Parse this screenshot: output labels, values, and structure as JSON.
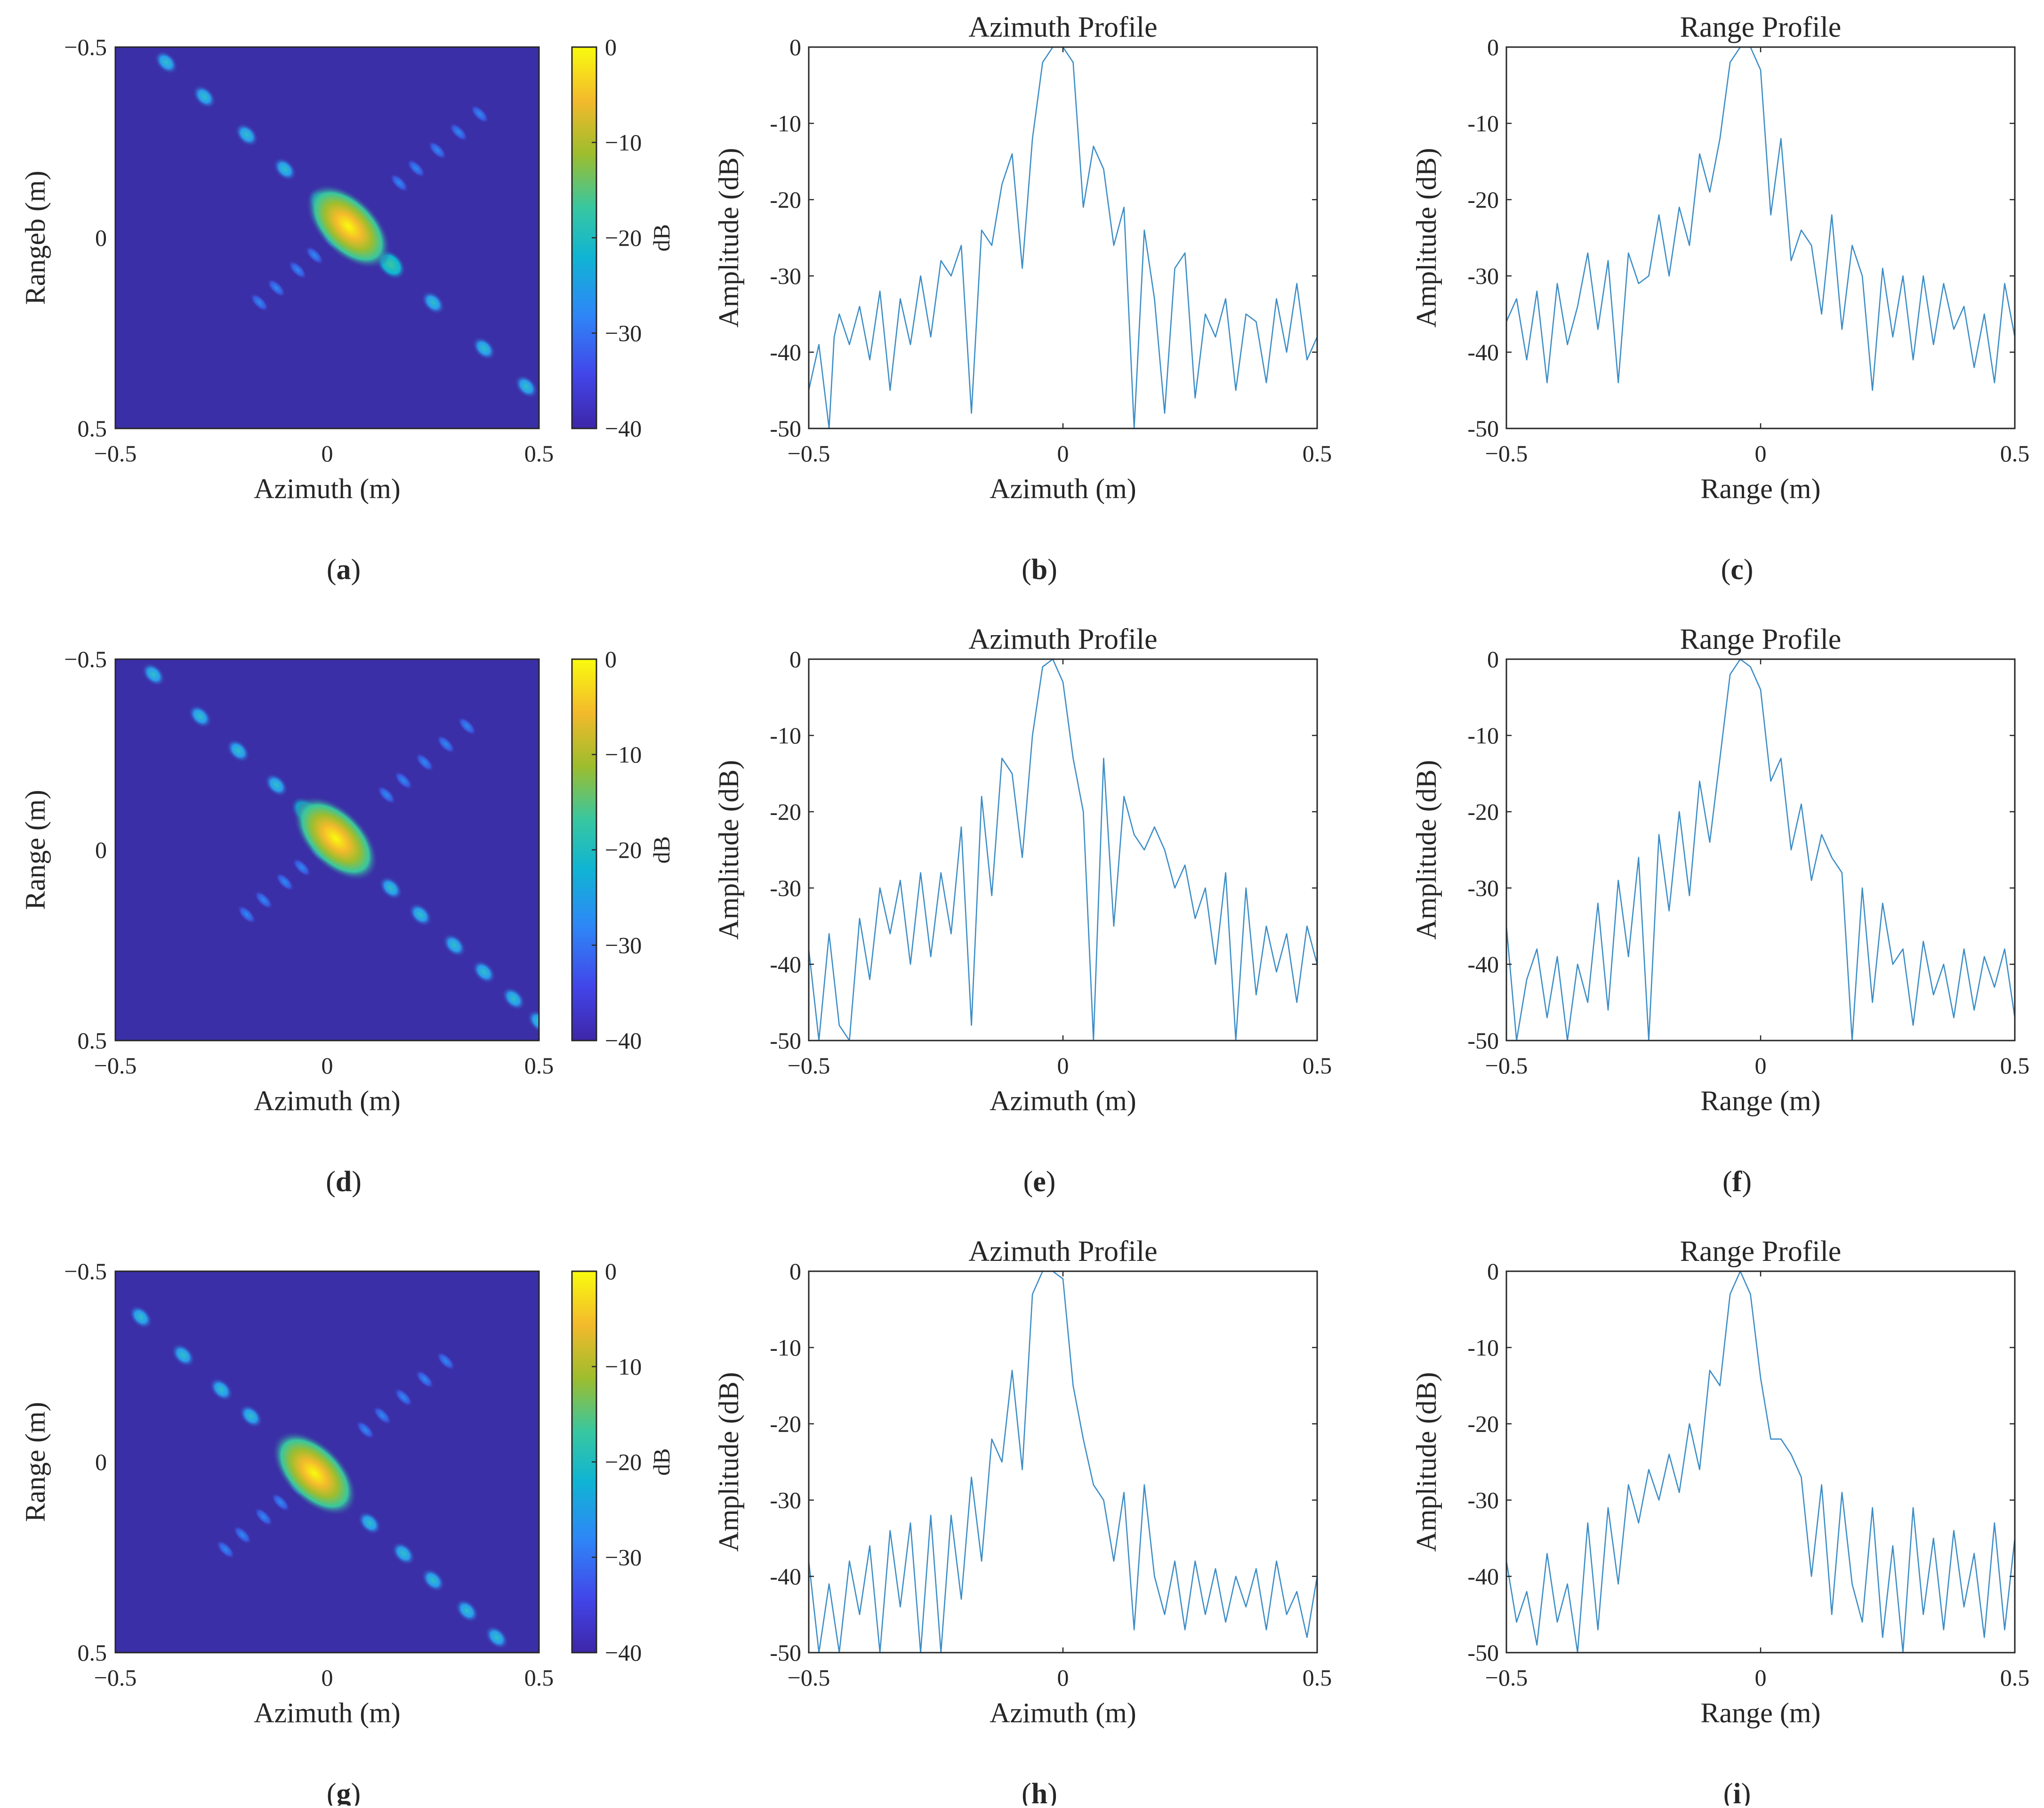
{
  "colors": {
    "line": "#3c8dc6",
    "image_background": "#3a2fa6",
    "colormap": [
      "#3e26a8",
      "#4245e9",
      "#2e87f7",
      "#10b4d3",
      "#38c7a0",
      "#9ebd2d",
      "#f3ba2c",
      "#f9fb0e"
    ]
  },
  "chart_data": [
    {
      "panel": "a",
      "caption": "a",
      "type": "heatmap",
      "xlabel": "Azimuth (m)",
      "ylabel": "Rangeb (m)",
      "xlim": [
        -0.5,
        0.5
      ],
      "ylim": [
        -0.5,
        0.5
      ],
      "y_reversed": true,
      "xticks": [
        "−0.5",
        "0",
        "0.5"
      ],
      "yticks": [
        "−0.5",
        "0",
        "0.5"
      ],
      "colorbar": {
        "label": "dB",
        "range": [
          -40,
          0
        ],
        "ticks": [
          "0",
          "−10",
          "−20",
          "−30",
          "−40"
        ]
      },
      "peak": {
        "x": 0.05,
        "y": -0.03
      },
      "diagonal_sidelobes_at": [
        -0.43,
        -0.34,
        -0.24,
        -0.15,
        -0.06,
        0.1,
        0.2,
        0.32,
        0.42,
        0.49
      ],
      "cross_sidelobes_at": [
        -0.21,
        -0.17,
        -0.12,
        -0.08,
        -0.04,
        0.12,
        0.16,
        0.21,
        0.26,
        0.31
      ]
    },
    {
      "panel": "b",
      "caption": "b",
      "type": "line",
      "title": "Azimuth Profile",
      "xlabel": "Azimuth (m)",
      "ylabel": "Amplitude (dB)",
      "xlim": [
        -0.5,
        0.5
      ],
      "ylim": [
        -50,
        0
      ],
      "xticks": [
        "−0.5",
        "0",
        "0.5"
      ],
      "yticks": [
        "0",
        "-10",
        "-20",
        "-30",
        "-40",
        "-50"
      ],
      "x": [
        -0.5,
        -0.48,
        -0.46,
        -0.45,
        -0.44,
        -0.42,
        -0.4,
        -0.38,
        -0.36,
        -0.34,
        -0.32,
        -0.3,
        -0.28,
        -0.26,
        -0.24,
        -0.22,
        -0.2,
        -0.18,
        -0.16,
        -0.14,
        -0.12,
        -0.1,
        -0.08,
        -0.06,
        -0.04,
        -0.02,
        0,
        0.02,
        0.04,
        0.06,
        0.08,
        0.1,
        0.12,
        0.14,
        0.16,
        0.18,
        0.2,
        0.22,
        0.24,
        0.26,
        0.28,
        0.3,
        0.32,
        0.34,
        0.36,
        0.38,
        0.4,
        0.42,
        0.44,
        0.46,
        0.48,
        0.5
      ],
      "y": [
        -45,
        -39,
        -50,
        -38,
        -35,
        -39,
        -34,
        -41,
        -32,
        -45,
        -33,
        -39,
        -30,
        -38,
        -28,
        -30,
        -26,
        -48,
        -24,
        -26,
        -18,
        -14,
        -29,
        -12,
        -2,
        0,
        0,
        -2,
        -21,
        -13,
        -16,
        -26,
        -21,
        -50,
        -24,
        -33,
        -48,
        -29,
        -27,
        -46,
        -35,
        -38,
        -33,
        -45,
        -35,
        -36,
        -44,
        -33,
        -40,
        -31,
        -41,
        -38
      ]
    },
    {
      "panel": "c",
      "caption": "c",
      "type": "line",
      "title": "Range Profile",
      "xlabel": "Range (m)",
      "ylabel": "Amplitude (dB)",
      "xlim": [
        -0.5,
        0.5
      ],
      "ylim": [
        -50,
        0
      ],
      "xticks": [
        "−0.5",
        "0",
        "0.5"
      ],
      "yticks": [
        "0",
        "-10",
        "-20",
        "-30",
        "-40",
        "-50"
      ],
      "x": [
        -0.5,
        -0.48,
        -0.46,
        -0.44,
        -0.42,
        -0.4,
        -0.38,
        -0.36,
        -0.34,
        -0.32,
        -0.3,
        -0.28,
        -0.26,
        -0.24,
        -0.22,
        -0.2,
        -0.18,
        -0.16,
        -0.14,
        -0.12,
        -0.1,
        -0.08,
        -0.06,
        -0.04,
        -0.02,
        0,
        0.02,
        0.04,
        0.06,
        0.08,
        0.1,
        0.12,
        0.14,
        0.16,
        0.18,
        0.2,
        0.22,
        0.24,
        0.26,
        0.28,
        0.3,
        0.32,
        0.34,
        0.36,
        0.38,
        0.4,
        0.42,
        0.44,
        0.46,
        0.48,
        0.5
      ],
      "y": [
        -36,
        -33,
        -41,
        -32,
        -44,
        -31,
        -39,
        -34,
        -27,
        -37,
        -28,
        -44,
        -27,
        -31,
        -30,
        -22,
        -30,
        -21,
        -26,
        -14,
        -19,
        -12,
        -2,
        0,
        0,
        -3,
        -22,
        -12,
        -28,
        -24,
        -26,
        -35,
        -22,
        -37,
        -26,
        -30,
        -45,
        -29,
        -38,
        -30,
        -41,
        -30,
        -39,
        -31,
        -37,
        -34,
        -42,
        -35,
        -44,
        -31,
        -38
      ]
    },
    {
      "panel": "d",
      "caption": "d",
      "type": "heatmap",
      "xlabel": "Azimuth (m)",
      "ylabel": "Range (m)",
      "xlim": [
        -0.5,
        0.5
      ],
      "ylim": [
        -0.5,
        0.5
      ],
      "y_reversed": true,
      "xticks": [
        "−0.5",
        "0",
        "0.5"
      ],
      "yticks": [
        "−0.5",
        "0",
        "0.5"
      ],
      "colorbar": {
        "label": "dB",
        "range": [
          -40,
          0
        ],
        "ticks": [
          "0",
          "−10",
          "−20",
          "−30",
          "−40"
        ]
      },
      "peak": {
        "x": 0.02,
        "y": -0.03
      },
      "diagonal_sidelobes_at": [
        -0.43,
        -0.32,
        -0.23,
        -0.14,
        -0.07,
        0.13,
        0.2,
        0.28,
        0.35,
        0.42,
        0.48
      ],
      "cross_sidelobes_at": [
        -0.21,
        -0.17,
        -0.12,
        -0.08,
        -0.04,
        0.12,
        0.16,
        0.21,
        0.26,
        0.31
      ]
    },
    {
      "panel": "e",
      "caption": "e",
      "type": "line",
      "title": "Azimuth Profile",
      "xlabel": "Azimuth (m)",
      "ylabel": "Amplitude (dB)",
      "xlim": [
        -0.5,
        0.5
      ],
      "ylim": [
        -50,
        0
      ],
      "xticks": [
        "−0.5",
        "0",
        "0.5"
      ],
      "yticks": [
        "0",
        "-10",
        "-20",
        "-30",
        "-40",
        "-50"
      ],
      "x": [
        -0.5,
        -0.48,
        -0.46,
        -0.44,
        -0.42,
        -0.4,
        -0.38,
        -0.36,
        -0.34,
        -0.32,
        -0.3,
        -0.28,
        -0.26,
        -0.24,
        -0.22,
        -0.2,
        -0.18,
        -0.16,
        -0.14,
        -0.12,
        -0.1,
        -0.08,
        -0.06,
        -0.04,
        -0.02,
        0,
        0.02,
        0.04,
        0.06,
        0.08,
        0.1,
        0.12,
        0.14,
        0.16,
        0.18,
        0.2,
        0.22,
        0.24,
        0.26,
        0.28,
        0.3,
        0.32,
        0.34,
        0.36,
        0.38,
        0.4,
        0.42,
        0.44,
        0.46,
        0.48,
        0.5
      ],
      "y": [
        -38,
        -50,
        -36,
        -48,
        -50,
        -34,
        -42,
        -30,
        -36,
        -29,
        -40,
        -28,
        -39,
        -28,
        -36,
        -22,
        -48,
        -18,
        -31,
        -13,
        -15,
        -26,
        -10,
        -1,
        0,
        -3,
        -13,
        -20,
        -50,
        -13,
        -35,
        -18,
        -23,
        -25,
        -22,
        -25,
        -30,
        -27,
        -34,
        -30,
        -40,
        -28,
        -50,
        -30,
        -44,
        -35,
        -41,
        -36,
        -45,
        -35,
        -40
      ]
    },
    {
      "panel": "f",
      "caption": "f",
      "type": "line",
      "title": "Range Profile",
      "xlabel": "Range (m)",
      "ylabel": "Amplitude (dB)",
      "xlim": [
        -0.5,
        0.5
      ],
      "ylim": [
        -50,
        0
      ],
      "xticks": [
        "−0.5",
        "0",
        "0.5"
      ],
      "yticks": [
        "0",
        "-10",
        "-20",
        "-30",
        "-40",
        "-50"
      ],
      "x": [
        -0.5,
        -0.48,
        -0.46,
        -0.44,
        -0.42,
        -0.4,
        -0.38,
        -0.36,
        -0.34,
        -0.32,
        -0.3,
        -0.28,
        -0.26,
        -0.24,
        -0.22,
        -0.2,
        -0.18,
        -0.16,
        -0.14,
        -0.12,
        -0.1,
        -0.08,
        -0.06,
        -0.04,
        -0.02,
        0,
        0.02,
        0.04,
        0.06,
        0.08,
        0.1,
        0.12,
        0.14,
        0.16,
        0.18,
        0.2,
        0.22,
        0.24,
        0.26,
        0.28,
        0.3,
        0.32,
        0.34,
        0.36,
        0.38,
        0.4,
        0.42,
        0.44,
        0.46,
        0.48,
        0.5
      ],
      "y": [
        -35,
        -50,
        -42,
        -38,
        -47,
        -39,
        -50,
        -40,
        -45,
        -32,
        -46,
        -29,
        -39,
        -26,
        -50,
        -23,
        -33,
        -20,
        -31,
        -16,
        -24,
        -13,
        -2,
        0,
        -1,
        -4,
        -16,
        -13,
        -25,
        -19,
        -29,
        -23,
        -26,
        -28,
        -50,
        -30,
        -45,
        -32,
        -40,
        -38,
        -48,
        -37,
        -44,
        -40,
        -47,
        -38,
        -46,
        -39,
        -43,
        -38,
        -47
      ]
    },
    {
      "panel": "g",
      "caption": "g",
      "type": "heatmap",
      "xlabel": "Azimuth (m)",
      "ylabel": "Range (m)",
      "xlim": [
        -0.5,
        0.5
      ],
      "ylim": [
        -0.5,
        0.5
      ],
      "y_reversed": true,
      "xticks": [
        "−0.5",
        "0",
        "0.5"
      ],
      "yticks": [
        "−0.5",
        "0",
        "0.5"
      ],
      "colorbar": {
        "label": "dB",
        "range": [
          -40,
          0
        ],
        "ticks": [
          "0",
          "−10",
          "−20",
          "−30",
          "−40"
        ]
      },
      "peak": {
        "x": -0.03,
        "y": 0.03
      },
      "diagonal_sidelobes_at": [
        -0.41,
        -0.31,
        -0.22,
        -0.15,
        0.13,
        0.21,
        0.28,
        0.36,
        0.43
      ],
      "cross_sidelobes_at": [
        -0.21,
        -0.17,
        -0.12,
        -0.08,
        -0.04,
        0.12,
        0.16,
        0.21,
        0.26,
        0.31
      ]
    },
    {
      "panel": "h",
      "caption": "h",
      "type": "line",
      "title": "Azimuth Profile",
      "xlabel": "Azimuth (m)",
      "ylabel": "Amplitude (dB)",
      "xlim": [
        -0.5,
        0.5
      ],
      "ylim": [
        -50,
        0
      ],
      "xticks": [
        "−0.5",
        "0",
        "0.5"
      ],
      "yticks": [
        "0",
        "-10",
        "-20",
        "-30",
        "-40",
        "-50"
      ],
      "x": [
        -0.5,
        -0.48,
        -0.46,
        -0.44,
        -0.42,
        -0.4,
        -0.38,
        -0.36,
        -0.34,
        -0.32,
        -0.3,
        -0.28,
        -0.26,
        -0.24,
        -0.22,
        -0.2,
        -0.18,
        -0.16,
        -0.14,
        -0.12,
        -0.1,
        -0.08,
        -0.06,
        -0.04,
        -0.02,
        0,
        0.02,
        0.04,
        0.06,
        0.08,
        0.1,
        0.12,
        0.14,
        0.16,
        0.18,
        0.2,
        0.22,
        0.24,
        0.26,
        0.28,
        0.3,
        0.32,
        0.34,
        0.36,
        0.38,
        0.4,
        0.42,
        0.44,
        0.46,
        0.48,
        0.5
      ],
      "y": [
        -38,
        -50,
        -41,
        -50,
        -38,
        -45,
        -36,
        -50,
        -34,
        -44,
        -33,
        -50,
        -32,
        -50,
        -32,
        -43,
        -27,
        -38,
        -22,
        -25,
        -13,
        -26,
        -3,
        0,
        0,
        -1,
        -15,
        -22,
        -28,
        -30,
        -38,
        -29,
        -47,
        -28,
        -40,
        -45,
        -38,
        -47,
        -38,
        -45,
        -39,
        -46,
        -40,
        -44,
        -39,
        -47,
        -38,
        -45,
        -42,
        -48,
        -40
      ]
    },
    {
      "panel": "i",
      "caption": "i",
      "type": "line",
      "title": "Range Profile",
      "xlabel": "Range (m)",
      "ylabel": "Amplitude (dB)",
      "xlim": [
        -0.5,
        0.5
      ],
      "ylim": [
        -50,
        0
      ],
      "xticks": [
        "−0.5",
        "0",
        "0.5"
      ],
      "yticks": [
        "0",
        "-10",
        "-20",
        "-30",
        "-40",
        "-50"
      ],
      "x": [
        -0.5,
        -0.48,
        -0.46,
        -0.44,
        -0.42,
        -0.4,
        -0.38,
        -0.36,
        -0.34,
        -0.32,
        -0.3,
        -0.28,
        -0.26,
        -0.24,
        -0.22,
        -0.2,
        -0.18,
        -0.16,
        -0.14,
        -0.12,
        -0.1,
        -0.08,
        -0.06,
        -0.04,
        -0.02,
        0,
        0.02,
        0.04,
        0.06,
        0.08,
        0.1,
        0.12,
        0.14,
        0.16,
        0.18,
        0.2,
        0.22,
        0.24,
        0.26,
        0.28,
        0.3,
        0.32,
        0.34,
        0.36,
        0.38,
        0.4,
        0.42,
        0.44,
        0.46,
        0.48,
        0.5
      ],
      "y": [
        -38,
        -46,
        -42,
        -49,
        -37,
        -46,
        -41,
        -50,
        -33,
        -47,
        -31,
        -41,
        -28,
        -33,
        -26,
        -30,
        -24,
        -29,
        -20,
        -26,
        -13,
        -15,
        -3,
        0,
        -3,
        -14,
        -22,
        -22,
        -24,
        -27,
        -40,
        -28,
        -45,
        -29,
        -41,
        -46,
        -31,
        -48,
        -36,
        -50,
        -31,
        -45,
        -35,
        -47,
        -34,
        -44,
        -37,
        -48,
        -33,
        -47,
        -35
      ]
    }
  ]
}
